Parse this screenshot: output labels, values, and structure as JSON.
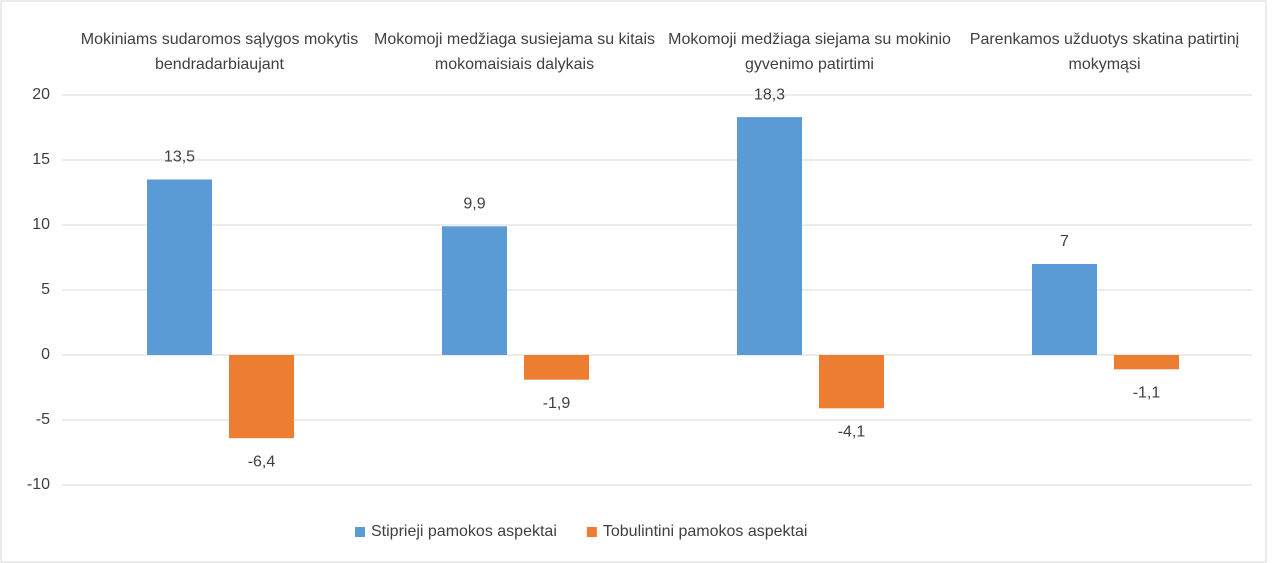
{
  "chart_data": {
    "type": "bar",
    "categories": [
      "Mokiniams sudaromos sąlygos mokytis bendradarbiaujant",
      "Mokomoji medžiaga susiejama su kitais mokomaisiais dalykais",
      "Mokomoji medžiaga siejama su mokinio gyvenimo patirtimi",
      "Parenkamos užduotys skatina patirtinį mokymąsi"
    ],
    "series": [
      {
        "name": "Stiprieji pamokos aspektai",
        "color": "#5b9bd5",
        "values": [
          13.5,
          9.9,
          18.3,
          7
        ],
        "value_labels": [
          "13,5",
          "9,9",
          "18,3",
          "7"
        ]
      },
      {
        "name": "Tobulintini pamokos aspektai",
        "color": "#ed7d31",
        "values": [
          -6.4,
          -1.9,
          -4.1,
          -1.1
        ],
        "value_labels": [
          "-6,4",
          "-1,9",
          "-4,1",
          "-1,1"
        ]
      }
    ],
    "ylim": [
      -10,
      20
    ],
    "yticks": [
      -10,
      -5,
      0,
      5,
      10,
      15,
      20
    ],
    "grid": true,
    "legend": "bottom"
  }
}
